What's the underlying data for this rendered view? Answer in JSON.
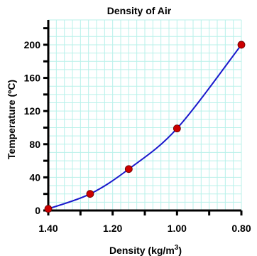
{
  "chart_data": {
    "type": "scatter",
    "title": "Density of Air",
    "xlabel": "Density (kg/m",
    "xlabel_superscript": "3",
    "xlabel_close": ")",
    "ylabel": "Temperature (ºC)",
    "xlim": [
      1.4,
      0.8
    ],
    "ylim": [
      0,
      230
    ],
    "x_reversed": true,
    "x_ticks": [
      1.4,
      1.2,
      1.0,
      0.8
    ],
    "x_tick_labels": [
      "1.40",
      "1.20",
      "1.00",
      "0.80"
    ],
    "y_ticks": [
      0,
      40,
      80,
      120,
      160,
      200
    ],
    "y_tick_labels": [
      "0",
      "40",
      "80",
      "120",
      "160",
      "200"
    ],
    "x_minor_step": 0.025,
    "y_minor_step": 10,
    "grid": true,
    "series": [
      {
        "points": [
          {
            "x": 1.4,
            "y": 2
          },
          {
            "x": 1.27,
            "y": 20
          },
          {
            "x": 1.15,
            "y": 50
          },
          {
            "x": 1.0,
            "y": 99
          },
          {
            "x": 0.8,
            "y": 200
          }
        ],
        "trendline": true
      }
    ],
    "colors": {
      "grid": "#b9f1ea",
      "axis": "#000000",
      "point": "#cc0000",
      "curve": "#1a1acc"
    }
  }
}
